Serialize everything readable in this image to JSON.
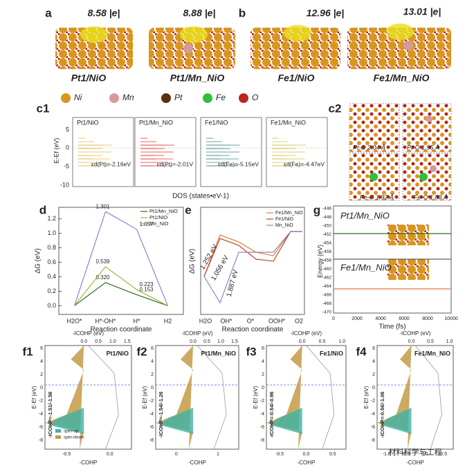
{
  "figure": {
    "panel_labels": [
      "a",
      "b",
      "c1",
      "c2",
      "d",
      "e",
      "g",
      "f1",
      "f2",
      "f3",
      "f4"
    ],
    "structures": {
      "charges": [
        "8.58 |e|",
        "8.88 |e|",
        "12.96 |e|",
        "13.01 |e|"
      ],
      "names": [
        "Pt1/NiO",
        "Pt1/Mn_NiO",
        "Fe1/NiO",
        "Fe1/Mn_NiO"
      ]
    },
    "legend": [
      "Ni",
      "Mn",
      "Pt",
      "Fe",
      "O"
    ],
    "c1": {
      "titles": [
        "Pt1/NiO",
        "Pt1/Mn_NiO",
        "Fe1/NiO",
        "Fe1/Mn_NiO"
      ],
      "d_band": [
        "εd(Pt)=-2.16eV",
        "εd(Pt)=-2.01V",
        "εd(Fe)=-5.15eV",
        "εd(Fe)=-4.47eV"
      ],
      "y_label": "E-Ef (eV)",
      "yticks": [
        "5",
        "0",
        "-5",
        "-10"
      ],
      "x_label": "DOS (states•eV-1)"
    },
    "c2": {
      "bonds": [
        "Pt-O 2.04 Å",
        "Pt-O 1.95 Å",
        "Fe-O 1.92 Å",
        "Fe-O 1.83 Å"
      ]
    },
    "e": {
      "legend": [
        "Fe1/Mn_NiO",
        "Fe1/NiO",
        "Mn_NiO"
      ],
      "barriers": [
        "1.252 eV",
        "1.056 eV",
        "1.887 eV"
      ],
      "categories": [
        "H2O",
        "OH*",
        "O*",
        "OOH*",
        "O2"
      ],
      "y_label": "ΔG (eV)",
      "x_label": "Reaction coordinate"
    },
    "g": {
      "titles": [
        "Pt1/Mn_NiO",
        "Fe1/Mn_NiO"
      ],
      "y_label": "Energy (eV)",
      "yticks": [
        "-446",
        "-448",
        "-450",
        "-452",
        "-454",
        "-456",
        "-458",
        "-460",
        "-462",
        "-464",
        "-466",
        "-468",
        "-470"
      ],
      "xticks": [
        "0",
        "2000",
        "4000",
        "6000",
        "8000",
        "10000"
      ],
      "x_label": "Time (fs)"
    },
    "f": {
      "panels": [
        {
          "title": "Pt1/NiO",
          "icohp": "-ICOHP=-1.51/-1.56",
          "top_ticks": [
            "0.0",
            "0.5",
            "1.0",
            "1.5"
          ],
          "bottom_ticks": [
            "-0.5",
            "0.0"
          ]
        },
        {
          "title": "Pt1/Mn_NiO",
          "icohp": "-ICOHP=-1.54/-1.26",
          "top_ticks": [
            "0.0",
            "0.5",
            "1.0",
            "1.5"
          ],
          "bottom_ticks": [
            "0",
            "1"
          ]
        },
        {
          "title": "Fe1/NiO",
          "icohp": "-ICOHP=-0.54/-0.96",
          "top_ticks": [
            "0.0",
            "0.5",
            "1.0"
          ],
          "bottom_ticks": [
            "-0.5",
            "0.0",
            "0.5"
          ]
        },
        {
          "title": "Fe1/Mn_NiO",
          "icohp": "-ICOHP=-0.56/-1.06",
          "top_ticks": [
            "0.0",
            "0.5",
            "1.0"
          ],
          "bottom_ticks": [
            "-1.0",
            "-0.5",
            "0.0",
            "0.5"
          ]
        }
      ],
      "top_label": "-ICOHP (eV)",
      "bottom_label": "-COHP",
      "y_label": "E-Ef (eV)",
      "yticks": [
        "6",
        "4",
        "2",
        "0",
        "-2",
        "-4",
        "-6",
        "-8"
      ],
      "spin": [
        "spin-up",
        "spin-down"
      ]
    },
    "watermark": "材料科学与工程"
  },
  "chart_data": {
    "type": "line",
    "y_label": "ΔG (eV)",
    "x_label": "Reaction coordinate",
    "categories": [
      "H2O*",
      "H*-OH*",
      "H*",
      "H2"
    ],
    "ylim": [
      -0.12,
      1.36
    ],
    "yticks": [
      {
        "value": 0,
        "label": "0.0"
      },
      0.2,
      0.4,
      0.6,
      0.8,
      {
        "value": 1,
        "label": "1.0"
      },
      1.2
    ],
    "legend": "upper right",
    "series": [
      {
        "name": "Pt1/Mn_NiO",
        "color": "#2e6b1f",
        "values": [
          0,
          0.32,
          0.153,
          0
        ],
        "value_labels": [
          null,
          "0.320",
          "0.153",
          null
        ]
      },
      {
        "name": "Pt1/NiO",
        "color": "#a3b43c",
        "values": [
          0,
          0.539,
          0.223,
          0
        ],
        "value_labels": [
          null,
          "0.539",
          "0.223",
          null
        ]
      },
      {
        "name": "Mn_NiO",
        "color": "#8c82c8",
        "values": [
          0,
          1.301,
          1.057,
          0
        ],
        "value_labels": [
          null,
          "1.301",
          "1.057",
          null
        ]
      }
    ]
  }
}
